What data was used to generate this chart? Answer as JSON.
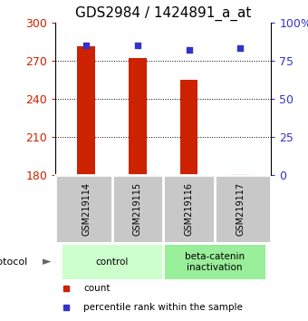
{
  "title": "GDS2984 / 1424891_a_at",
  "samples": [
    "GSM219114",
    "GSM219115",
    "GSM219116",
    "GSM219117"
  ],
  "counts": [
    281,
    272,
    255,
    181
  ],
  "percentile_ranks": [
    85,
    85,
    82,
    83
  ],
  "bar_color": "#cc2200",
  "dot_color": "#3333cc",
  "ylim_left": [
    180,
    300
  ],
  "yticks_left": [
    180,
    210,
    240,
    270,
    300
  ],
  "ylim_right": [
    0,
    100
  ],
  "yticks_right": [
    0,
    25,
    50,
    75,
    100
  ],
  "ytick_labels_right": [
    "0",
    "25",
    "50",
    "75",
    "100%"
  ],
  "groups": [
    {
      "label": "control",
      "samples": [
        0,
        1
      ],
      "color": "#ccffcc"
    },
    {
      "label": "beta-catenin\ninactivation",
      "samples": [
        2,
        3
      ],
      "color": "#99ee99"
    }
  ],
  "protocol_label": "protocol",
  "legend_items": [
    {
      "color": "#cc2200",
      "marker": "s",
      "label": "count"
    },
    {
      "color": "#3333cc",
      "marker": "s",
      "label": "percentile rank within the sample"
    }
  ],
  "background_color": "#ffffff",
  "plot_bg_color": "#ffffff",
  "sample_bg_color": "#c8c8c8",
  "title_fontsize": 11,
  "tick_fontsize": 9,
  "bar_width": 0.35
}
